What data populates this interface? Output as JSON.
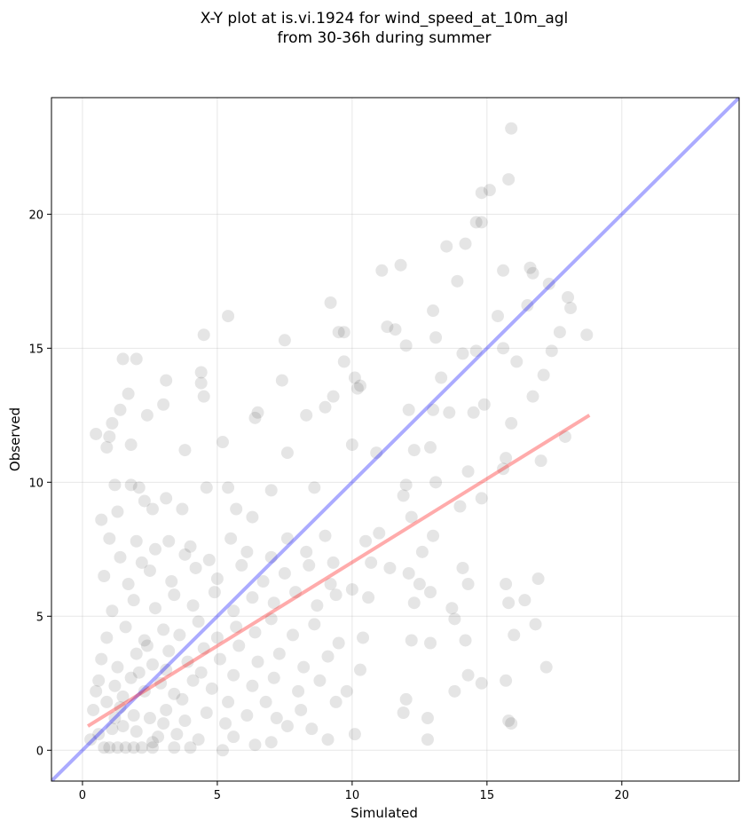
{
  "chart_data": {
    "type": "scatter",
    "title": [
      "X-Y plot at is.vi.1924 for wind_speed_at_10m_agl",
      "from 30-36h during summer"
    ],
    "xlabel": "Simulated",
    "ylabel": "Observed",
    "xlim": [
      -1.15,
      24.35
    ],
    "ylim": [
      -1.15,
      24.35
    ],
    "xticks": [
      0,
      5,
      10,
      15,
      20
    ],
    "yticks": [
      0,
      5,
      10,
      15,
      20
    ],
    "grid": true,
    "point_color": "#000000",
    "points": [
      [
        15.9,
        23.2
      ],
      [
        15.8,
        21.3
      ],
      [
        14.8,
        20.8
      ],
      [
        15.1,
        20.9
      ],
      [
        14.6,
        19.7
      ],
      [
        14.8,
        19.7
      ],
      [
        13.5,
        18.8
      ],
      [
        14.2,
        18.9
      ],
      [
        11.8,
        18.1
      ],
      [
        11.1,
        17.9
      ],
      [
        13.9,
        17.5
      ],
      [
        15.6,
        17.9
      ],
      [
        16.6,
        18.0
      ],
      [
        16.7,
        17.8
      ],
      [
        17.3,
        17.4
      ],
      [
        18.0,
        16.9
      ],
      [
        18.1,
        16.5
      ],
      [
        16.5,
        16.6
      ],
      [
        15.4,
        16.2
      ],
      [
        13.0,
        16.4
      ],
      [
        9.2,
        16.7
      ],
      [
        5.4,
        16.2
      ],
      [
        4.5,
        15.5
      ],
      [
        7.5,
        15.3
      ],
      [
        9.5,
        15.6
      ],
      [
        9.7,
        15.6
      ],
      [
        11.3,
        15.8
      ],
      [
        11.6,
        15.7
      ],
      [
        12.0,
        15.1
      ],
      [
        13.1,
        15.4
      ],
      [
        14.6,
        14.9
      ],
      [
        15.6,
        15.0
      ],
      [
        17.4,
        14.9
      ],
      [
        17.7,
        15.6
      ],
      [
        18.7,
        15.5
      ],
      [
        1.5,
        14.6
      ],
      [
        2.0,
        14.6
      ],
      [
        4.4,
        14.1
      ],
      [
        4.4,
        13.7
      ],
      [
        4.5,
        13.2
      ],
      [
        3.1,
        13.8
      ],
      [
        1.7,
        13.3
      ],
      [
        1.4,
        12.7
      ],
      [
        1.1,
        12.2
      ],
      [
        2.4,
        12.5
      ],
      [
        3.0,
        12.9
      ],
      [
        6.5,
        12.6
      ],
      [
        6.4,
        12.4
      ],
      [
        7.4,
        13.8
      ],
      [
        9.7,
        14.5
      ],
      [
        10.1,
        13.9
      ],
      [
        10.2,
        13.5
      ],
      [
        9.3,
        13.2
      ],
      [
        9.0,
        12.8
      ],
      [
        8.3,
        12.5
      ],
      [
        10.3,
        13.6
      ],
      [
        12.1,
        12.7
      ],
      [
        13.0,
        12.7
      ],
      [
        13.6,
        12.6
      ],
      [
        14.5,
        12.6
      ],
      [
        14.9,
        12.9
      ],
      [
        15.9,
        12.2
      ],
      [
        16.7,
        13.2
      ],
      [
        17.1,
        14.0
      ],
      [
        16.1,
        14.5
      ],
      [
        14.1,
        14.8
      ],
      [
        13.3,
        13.9
      ],
      [
        0.5,
        11.8
      ],
      [
        1.0,
        11.7
      ],
      [
        1.8,
        11.4
      ],
      [
        0.9,
        11.3
      ],
      [
        3.8,
        11.2
      ],
      [
        5.2,
        11.5
      ],
      [
        7.6,
        11.1
      ],
      [
        10.0,
        11.4
      ],
      [
        10.9,
        11.1
      ],
      [
        12.9,
        11.3
      ],
      [
        12.3,
        11.2
      ],
      [
        14.3,
        10.4
      ],
      [
        15.6,
        10.5
      ],
      [
        15.7,
        10.9
      ],
      [
        17.0,
        10.8
      ],
      [
        17.9,
        11.7
      ],
      [
        13.1,
        10.0
      ],
      [
        12.0,
        9.9
      ],
      [
        11.9,
        9.5
      ],
      [
        12.2,
        8.7
      ],
      [
        13.0,
        8.0
      ],
      [
        14.0,
        9.1
      ],
      [
        14.8,
        9.4
      ],
      [
        1.2,
        9.9
      ],
      [
        1.8,
        9.9
      ],
      [
        2.1,
        9.8
      ],
      [
        4.6,
        9.8
      ],
      [
        5.4,
        9.8
      ],
      [
        7.0,
        9.7
      ],
      [
        8.6,
        9.8
      ],
      [
        2.3,
        9.3
      ],
      [
        3.1,
        9.4
      ],
      [
        2.6,
        9.0
      ],
      [
        0.7,
        8.6
      ],
      [
        1.3,
        8.9
      ],
      [
        3.7,
        9.0
      ],
      [
        5.7,
        9.0
      ],
      [
        6.3,
        8.7
      ],
      [
        1.0,
        7.9
      ],
      [
        2.0,
        7.8
      ],
      [
        3.2,
        7.8
      ],
      [
        2.7,
        7.5
      ],
      [
        4.0,
        7.6
      ],
      [
        5.5,
        7.9
      ],
      [
        7.6,
        7.9
      ],
      [
        9.0,
        8.0
      ],
      [
        10.5,
        7.8
      ],
      [
        11.0,
        8.1
      ],
      [
        12.6,
        7.4
      ],
      [
        12.1,
        6.6
      ],
      [
        12.5,
        6.2
      ],
      [
        14.1,
        6.8
      ],
      [
        14.3,
        6.2
      ],
      [
        15.7,
        6.2
      ],
      [
        16.4,
        5.6
      ],
      [
        16.9,
        6.4
      ],
      [
        12.3,
        5.5
      ],
      [
        12.9,
        5.9
      ],
      [
        13.7,
        5.3
      ],
      [
        13.8,
        4.9
      ],
      [
        14.2,
        4.1
      ],
      [
        15.8,
        5.5
      ],
      [
        16.0,
        4.3
      ],
      [
        16.8,
        4.7
      ],
      [
        17.2,
        3.1
      ],
      [
        12.2,
        4.1
      ],
      [
        12.9,
        4.0
      ],
      [
        13.8,
        2.2
      ],
      [
        14.3,
        2.8
      ],
      [
        14.8,
        2.5
      ],
      [
        15.7,
        2.6
      ],
      [
        12.0,
        1.9
      ],
      [
        11.9,
        1.4
      ],
      [
        12.8,
        1.2
      ],
      [
        12.8,
        0.4
      ],
      [
        15.8,
        1.1
      ],
      [
        15.9,
        1.0
      ],
      [
        10.1,
        0.6
      ],
      [
        5.2,
        0.0
      ],
      [
        0.8,
        0.1
      ],
      [
        1.0,
        0.1
      ],
      [
        1.3,
        0.1
      ],
      [
        1.6,
        0.1
      ],
      [
        1.9,
        0.1
      ],
      [
        2.2,
        0.1
      ],
      [
        2.6,
        0.1
      ],
      [
        3.4,
        0.1
      ],
      [
        4.0,
        0.1
      ],
      [
        0.6,
        0.6
      ],
      [
        1.1,
        0.8
      ],
      [
        1.5,
        0.9
      ],
      [
        2.0,
        0.7
      ],
      [
        2.8,
        0.5
      ],
      [
        3.5,
        0.6
      ],
      [
        4.3,
        0.4
      ],
      [
        5.6,
        0.5
      ],
      [
        6.4,
        0.2
      ],
      [
        7.0,
        0.3
      ],
      [
        0.4,
        1.5
      ],
      [
        0.9,
        1.8
      ],
      [
        1.4,
        1.6
      ],
      [
        1.9,
        1.3
      ],
      [
        2.5,
        1.2
      ],
      [
        3.1,
        1.5
      ],
      [
        3.8,
        1.1
      ],
      [
        4.6,
        1.4
      ],
      [
        5.3,
        1.0
      ],
      [
        6.1,
        1.3
      ],
      [
        7.2,
        1.2
      ],
      [
        8.1,
        1.5
      ],
      [
        9.4,
        1.8
      ],
      [
        0.6,
        2.6
      ],
      [
        1.2,
        2.4
      ],
      [
        1.8,
        2.7
      ],
      [
        2.3,
        2.2
      ],
      [
        2.9,
        2.5
      ],
      [
        3.4,
        2.1
      ],
      [
        4.1,
        2.6
      ],
      [
        4.8,
        2.3
      ],
      [
        5.6,
        2.8
      ],
      [
        6.3,
        2.4
      ],
      [
        7.1,
        2.7
      ],
      [
        8.0,
        2.2
      ],
      [
        8.8,
        2.6
      ],
      [
        9.8,
        2.2
      ],
      [
        0.7,
        3.4
      ],
      [
        1.3,
        3.1
      ],
      [
        2.0,
        3.6
      ],
      [
        2.6,
        3.2
      ],
      [
        3.2,
        3.7
      ],
      [
        3.9,
        3.3
      ],
      [
        4.5,
        3.8
      ],
      [
        5.1,
        3.4
      ],
      [
        5.8,
        3.9
      ],
      [
        6.5,
        3.3
      ],
      [
        7.3,
        3.6
      ],
      [
        8.2,
        3.1
      ],
      [
        9.1,
        3.5
      ],
      [
        10.3,
        3.0
      ],
      [
        0.9,
        4.2
      ],
      [
        1.6,
        4.6
      ],
      [
        2.3,
        4.1
      ],
      [
        3.0,
        4.5
      ],
      [
        3.6,
        4.3
      ],
      [
        4.3,
        4.8
      ],
      [
        5.0,
        4.2
      ],
      [
        5.7,
        4.6
      ],
      [
        6.4,
        4.4
      ],
      [
        7.0,
        4.9
      ],
      [
        7.8,
        4.3
      ],
      [
        8.6,
        4.7
      ],
      [
        9.5,
        4.0
      ],
      [
        10.4,
        4.2
      ],
      [
        1.1,
        5.2
      ],
      [
        1.9,
        5.6
      ],
      [
        2.7,
        5.3
      ],
      [
        3.4,
        5.8
      ],
      [
        4.1,
        5.4
      ],
      [
        4.9,
        5.9
      ],
      [
        5.6,
        5.2
      ],
      [
        6.3,
        5.7
      ],
      [
        7.1,
        5.5
      ],
      [
        7.9,
        5.9
      ],
      [
        8.7,
        5.4
      ],
      [
        9.4,
        5.8
      ],
      [
        10.6,
        5.7
      ],
      [
        0.8,
        6.5
      ],
      [
        1.7,
        6.2
      ],
      [
        2.5,
        6.7
      ],
      [
        3.3,
        6.3
      ],
      [
        4.2,
        6.8
      ],
      [
        5.0,
        6.4
      ],
      [
        5.9,
        6.9
      ],
      [
        6.7,
        6.3
      ],
      [
        7.5,
        6.6
      ],
      [
        8.4,
        6.9
      ],
      [
        9.2,
        6.2
      ],
      [
        10.0,
        6.0
      ],
      [
        1.4,
        7.2
      ],
      [
        2.2,
        7.0
      ],
      [
        3.8,
        7.3
      ],
      [
        4.7,
        7.1
      ],
      [
        6.1,
        7.4
      ],
      [
        7.0,
        7.2
      ],
      [
        8.3,
        7.4
      ],
      [
        9.3,
        7.0
      ],
      [
        10.7,
        7.0
      ],
      [
        11.4,
        6.8
      ],
      [
        2.6,
        0.3
      ],
      [
        3.0,
        1.0
      ],
      [
        3.7,
        1.9
      ],
      [
        4.4,
        2.9
      ],
      [
        1.5,
        2.0
      ],
      [
        2.1,
        2.9
      ],
      [
        5.4,
        1.8
      ],
      [
        6.8,
        1.8
      ],
      [
        7.6,
        0.9
      ],
      [
        8.5,
        0.8
      ],
      [
        9.1,
        0.4
      ],
      [
        2.4,
        3.9
      ],
      [
        3.1,
        3.0
      ],
      [
        1.2,
        1.2
      ],
      [
        0.3,
        0.4
      ],
      [
        0.5,
        2.2
      ]
    ],
    "lines": [
      {
        "color": "#0000ff",
        "x": [
          -1.15,
          24.35
        ],
        "y": [
          -1.15,
          24.35
        ]
      },
      {
        "color": "#ff0000",
        "x": [
          0.2,
          18.8
        ],
        "y": [
          0.9,
          12.5
        ]
      }
    ]
  }
}
